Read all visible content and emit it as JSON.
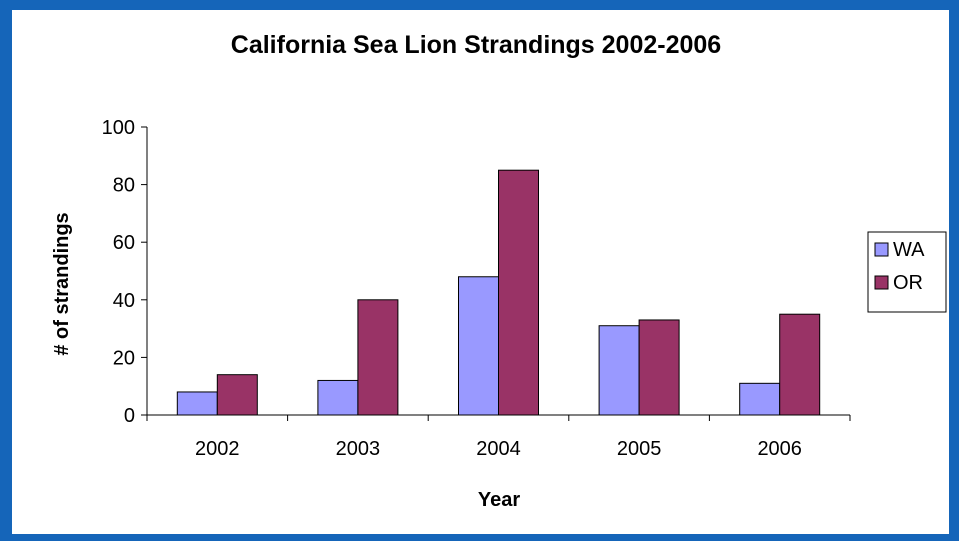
{
  "chart_data": {
    "type": "bar",
    "title": "California Sea Lion Strandings 2002-2006",
    "xlabel": "Year",
    "ylabel": "# of strandings",
    "categories": [
      "2002",
      "2003",
      "2004",
      "2005",
      "2006"
    ],
    "series": [
      {
        "name": "WA",
        "color": "#9999FF",
        "values": [
          8,
          12,
          48,
          31,
          11
        ]
      },
      {
        "name": "OR",
        "color": "#993366",
        "values": [
          14,
          40,
          85,
          33,
          35
        ]
      }
    ],
    "ylim": [
      0,
      100
    ],
    "yticks": [
      "0",
      "20",
      "40",
      "60",
      "80",
      "100"
    ],
    "grid": false,
    "legend_position": "right"
  },
  "colors": {
    "background_border": "#1565B9",
    "plot_background": "#FFFFFF"
  }
}
